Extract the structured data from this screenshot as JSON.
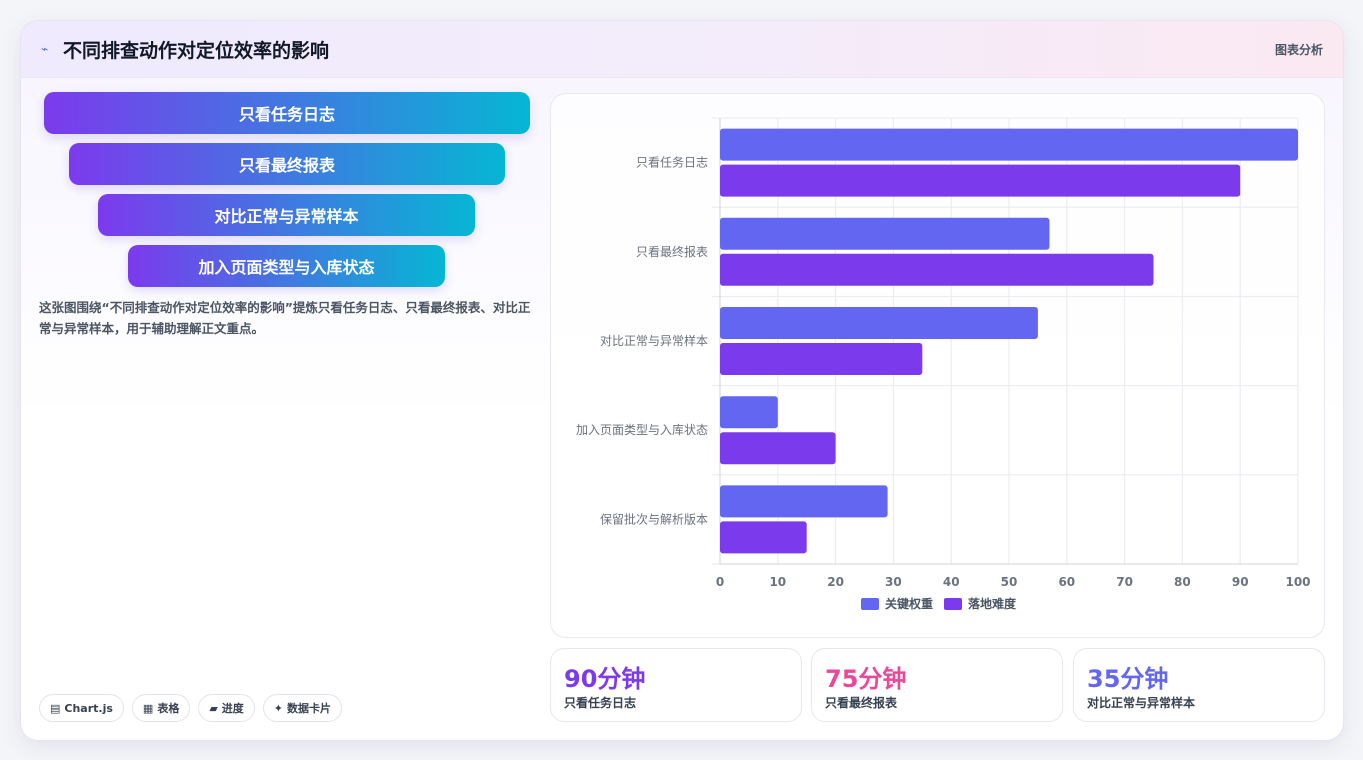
{
  "header": {
    "title": "不同排查动作对定位效率的影响",
    "tag": "图表分析"
  },
  "funnel": [
    "只看任务日志",
    "只看最终报表",
    "对比正常与异常样本",
    "加入页面类型与入库状态"
  ],
  "description": "这张图围绕“不同排查动作对定位效率的影响”提炼只看任务日志、只看最终报表、对比正常与异常样本，用于辅助理解正文重点。",
  "chips": [
    {
      "icon": "▤",
      "label": "Chart.js"
    },
    {
      "icon": "▦",
      "label": "表格"
    },
    {
      "icon": "▰",
      "label": "进度"
    },
    {
      "icon": "✦",
      "label": "数据卡片"
    }
  ],
  "stats": [
    {
      "value": "90分钟",
      "label": "只看任务日志",
      "color": "#7c3aed"
    },
    {
      "value": "75分钟",
      "label": "只看最终报表",
      "color": "#ec4899"
    },
    {
      "value": "35分钟",
      "label": "对比正常与异常样本",
      "color": "#6366f1"
    }
  ],
  "chart_data": {
    "type": "bar",
    "orientation": "horizontal",
    "categories": [
      "只看任务日志",
      "只看最终报表",
      "对比正常与异常样本",
      "加入页面类型与入库状态",
      "保留批次与解析版本"
    ],
    "series": [
      {
        "name": "关键权重",
        "values": [
          100,
          57,
          55,
          10,
          29
        ],
        "color": "#6366f1"
      },
      {
        "name": "落地难度",
        "values": [
          90,
          75,
          35,
          20,
          15
        ],
        "color": "#7c3aed"
      }
    ],
    "xlim": [
      0,
      100
    ],
    "xticks": [
      0,
      10,
      20,
      30,
      40,
      50,
      60,
      70,
      80,
      90,
      100
    ],
    "grid": true,
    "legend": "bottom"
  }
}
